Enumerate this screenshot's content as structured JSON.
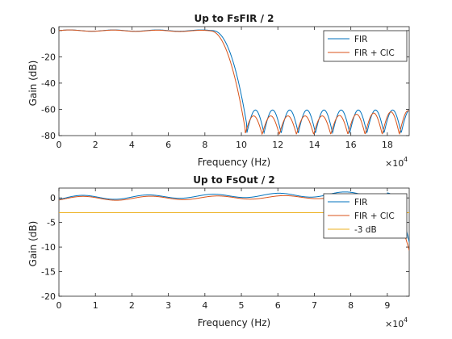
{
  "colors": {
    "fir": "#0072BD",
    "fir_cic": "#D95319",
    "minus3": "#EDB120",
    "axes": "#262626"
  },
  "chart_data": [
    {
      "type": "line",
      "title": "Up to FsFIR / 2",
      "xlabel": "Frequency (Hz)",
      "ylabel": "Gain (dB)",
      "xlim": [
        0,
        192000
      ],
      "ylim": [
        -80,
        3
      ],
      "xticks": [
        0,
        20000,
        40000,
        60000,
        80000,
        100000,
        120000,
        140000,
        160000,
        180000
      ],
      "xtick_labels": [
        "0",
        "2",
        "4",
        "6",
        "8",
        "10",
        "12",
        "14",
        "16",
        "18"
      ],
      "yticks": [
        0,
        -20,
        -40,
        -60,
        -80
      ],
      "ytick_labels": [
        "0",
        "-20",
        "-40",
        "-60",
        "-80"
      ],
      "x_exponent": {
        "base": "×10",
        "power": "4"
      },
      "legend_position": "top-right",
      "series": [
        {
          "name": "FIR",
          "color_key": "fir"
        },
        {
          "name": "FIR + CIC",
          "color_key": "fir_cic"
        }
      ]
    },
    {
      "type": "line",
      "title": "Up to FsOut / 2",
      "xlabel": "Frequency (Hz)",
      "ylabel": "Gain (dB)",
      "xlim": [
        0,
        96000
      ],
      "ylim": [
        -20,
        2
      ],
      "xticks": [
        0,
        10000,
        20000,
        30000,
        40000,
        50000,
        60000,
        70000,
        80000,
        90000
      ],
      "xtick_labels": [
        "0",
        "1",
        "2",
        "3",
        "4",
        "5",
        "6",
        "7",
        "8",
        "9"
      ],
      "yticks": [
        0,
        -5,
        -10,
        -15,
        -20
      ],
      "ytick_labels": [
        "0",
        "-5",
        "-10",
        "-15",
        "-20"
      ],
      "x_exponent": {
        "base": "×10",
        "power": "4"
      },
      "legend_position": "top-right",
      "series": [
        {
          "name": "FIR",
          "color_key": "fir"
        },
        {
          "name": "FIR + CIC",
          "color_key": "fir_cic"
        },
        {
          "name": "-3 dB",
          "color_key": "minus3"
        }
      ]
    }
  ]
}
